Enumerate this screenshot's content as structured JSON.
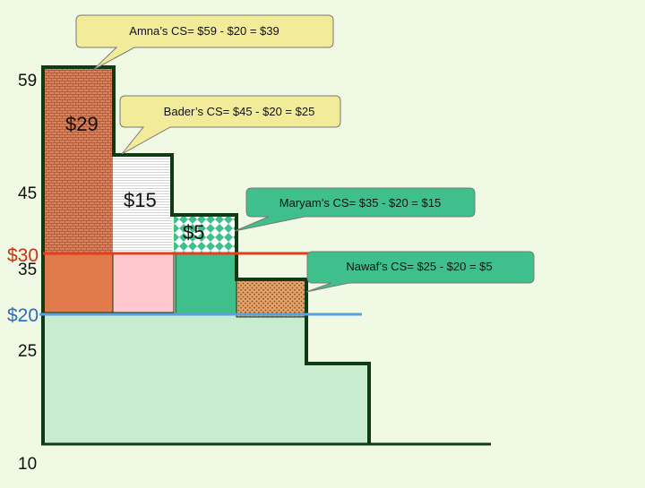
{
  "palette": {
    "background": "#f0f9e4",
    "outline": "#0e3a14",
    "amna_surplus": "#d9825b",
    "amna_base": "#e07a4a",
    "bader_surplus": "#ffffff",
    "bader_base": "#ffc8cf",
    "maryam_surplus": "#3fbf8c",
    "maryam_base": "#3fbf8c",
    "nawaf_surplus": "#e3a36b",
    "producer_area": "#c8ecd0",
    "callout_fill": "#f2ec9a",
    "callout_border": "#777777",
    "price_line_30": "#e0401e",
    "price_line_20": "#5aa0dc",
    "label_30": "#c83214",
    "label_20": "#2a6ac0"
  },
  "axis_labels": {
    "v59": "59",
    "v45": "45",
    "v35": "35",
    "v25": "25",
    "v10": "10"
  },
  "price_labels": {
    "p30": "$30",
    "p20": "$20"
  },
  "bar_values": {
    "amna": "$29",
    "bader": "$15",
    "maryam": "$5"
  },
  "callouts": {
    "amna": "Amna’s CS= $59 - $20 = $39",
    "bader": "Bader’s CS= $45 - $20 = $25",
    "maryam": "Maryam’s CS= $35 - $20 = $15",
    "nawaf": "Nawaf’s CS= $25 - $20 = $5"
  }
}
